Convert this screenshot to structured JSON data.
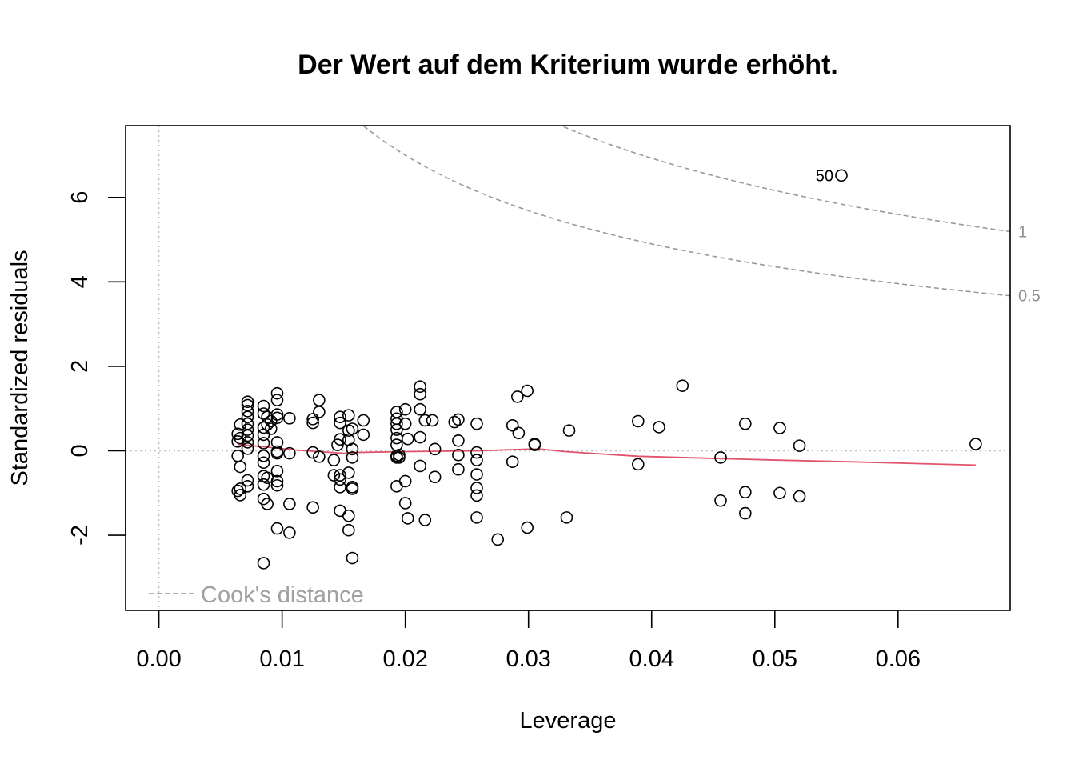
{
  "chart_data": {
    "type": "scatter",
    "title": "Der Wert auf dem Kriterium wurde erhöht.",
    "xlabel": "Leverage",
    "ylabel": "Standardized residuals",
    "xlim": [
      -0.0027,
      0.0691
    ],
    "ylim": [
      -3.78,
      7.7
    ],
    "x_ticks": [
      {
        "value": 0.0,
        "label": "0.00"
      },
      {
        "value": 0.01,
        "label": "0.01"
      },
      {
        "value": 0.02,
        "label": "0.02"
      },
      {
        "value": 0.03,
        "label": "0.03"
      },
      {
        "value": 0.04,
        "label": "0.04"
      },
      {
        "value": 0.05,
        "label": "0.05"
      },
      {
        "value": 0.06,
        "label": "0.06"
      }
    ],
    "y_ticks": [
      {
        "value": -2,
        "label": "-2"
      },
      {
        "value": 0,
        "label": "0"
      },
      {
        "value": 2,
        "label": "2"
      },
      {
        "value": 4,
        "label": "4"
      },
      {
        "value": 6,
        "label": "6"
      }
    ],
    "points": [
      [
        0.0064,
        0.4
      ],
      [
        0.0064,
        0.22
      ],
      [
        0.0064,
        -0.12
      ],
      [
        0.0064,
        -0.95
      ],
      [
        0.0066,
        0.62
      ],
      [
        0.0066,
        0.3
      ],
      [
        0.0066,
        -0.38
      ],
      [
        0.0066,
        -0.9
      ],
      [
        0.0066,
        -1.05
      ],
      [
        0.0072,
        1.16
      ],
      [
        0.0072,
        1.08
      ],
      [
        0.0072,
        0.94
      ],
      [
        0.0072,
        0.8
      ],
      [
        0.0072,
        0.64
      ],
      [
        0.0072,
        0.5
      ],
      [
        0.0072,
        0.36
      ],
      [
        0.0072,
        0.2
      ],
      [
        0.0072,
        0.05
      ],
      [
        0.0072,
        -0.7
      ],
      [
        0.0072,
        -0.84
      ],
      [
        0.0085,
        1.06
      ],
      [
        0.0085,
        0.88
      ],
      [
        0.0085,
        0.55
      ],
      [
        0.0085,
        0.38
      ],
      [
        0.0085,
        0.18
      ],
      [
        0.0085,
        -0.12
      ],
      [
        0.0085,
        -0.28
      ],
      [
        0.0085,
        -0.6
      ],
      [
        0.0085,
        -0.8
      ],
      [
        0.0085,
        -1.14
      ],
      [
        0.0085,
        -2.66
      ],
      [
        0.0088,
        0.8
      ],
      [
        0.0088,
        0.62
      ],
      [
        0.0088,
        -0.64
      ],
      [
        0.0088,
        -1.26
      ],
      [
        0.0091,
        0.7
      ],
      [
        0.0091,
        0.52
      ],
      [
        0.0096,
        1.36
      ],
      [
        0.0096,
        1.2
      ],
      [
        0.0096,
        0.86
      ],
      [
        0.0096,
        0.78
      ],
      [
        0.0096,
        0.2
      ],
      [
        0.0096,
        -0.02
      ],
      [
        0.0096,
        -0.06
      ],
      [
        0.0096,
        -0.48
      ],
      [
        0.0096,
        -0.72
      ],
      [
        0.0096,
        -0.82
      ],
      [
        0.0096,
        -1.84
      ],
      [
        0.0106,
        0.77
      ],
      [
        0.0106,
        -0.06
      ],
      [
        0.0106,
        -1.26
      ],
      [
        0.0106,
        -1.94
      ],
      [
        0.0125,
        0.75
      ],
      [
        0.0125,
        0.66
      ],
      [
        0.0125,
        -0.04
      ],
      [
        0.0125,
        -1.34
      ],
      [
        0.013,
        1.2
      ],
      [
        0.013,
        0.92
      ],
      [
        0.013,
        -0.14
      ],
      [
        0.0142,
        -0.22
      ],
      [
        0.0142,
        -0.58
      ],
      [
        0.0145,
        0.14
      ],
      [
        0.0147,
        0.8
      ],
      [
        0.0147,
        0.66
      ],
      [
        0.0147,
        0.27
      ],
      [
        0.0147,
        -0.58
      ],
      [
        0.0147,
        -0.68
      ],
      [
        0.0147,
        -0.86
      ],
      [
        0.0147,
        -1.42
      ],
      [
        0.0154,
        0.84
      ],
      [
        0.0154,
        0.48
      ],
      [
        0.0154,
        0.26
      ],
      [
        0.0154,
        -0.52
      ],
      [
        0.0154,
        -1.54
      ],
      [
        0.0154,
        -1.88
      ],
      [
        0.0157,
        0.52
      ],
      [
        0.0157,
        0.04
      ],
      [
        0.0157,
        -0.16
      ],
      [
        0.0157,
        -0.86
      ],
      [
        0.0157,
        -0.9
      ],
      [
        0.0157,
        -2.54
      ],
      [
        0.0166,
        0.72
      ],
      [
        0.0166,
        0.38
      ],
      [
        0.0193,
        0.92
      ],
      [
        0.0193,
        0.76
      ],
      [
        0.0193,
        0.64
      ],
      [
        0.0193,
        0.5
      ],
      [
        0.0193,
        0.3
      ],
      [
        0.0193,
        0.14
      ],
      [
        0.0193,
        -0.12
      ],
      [
        0.0193,
        -0.16
      ],
      [
        0.0193,
        -0.84
      ],
      [
        0.0195,
        -0.1
      ],
      [
        0.0195,
        -0.16
      ],
      [
        0.02,
        0.98
      ],
      [
        0.02,
        0.64
      ],
      [
        0.02,
        -0.72
      ],
      [
        0.02,
        -1.24
      ],
      [
        0.0202,
        0.28
      ],
      [
        0.0202,
        -1.6
      ],
      [
        0.0212,
        1.52
      ],
      [
        0.0212,
        1.34
      ],
      [
        0.0212,
        0.98
      ],
      [
        0.0212,
        0.32
      ],
      [
        0.0212,
        -0.36
      ],
      [
        0.0216,
        0.72
      ],
      [
        0.0216,
        -1.64
      ],
      [
        0.0222,
        0.72
      ],
      [
        0.0224,
        0.04
      ],
      [
        0.0224,
        -0.62
      ],
      [
        0.024,
        0.68
      ],
      [
        0.0243,
        0.74
      ],
      [
        0.0243,
        0.24
      ],
      [
        0.0243,
        -0.1
      ],
      [
        0.0243,
        -0.44
      ],
      [
        0.0258,
        0.64
      ],
      [
        0.0258,
        -0.04
      ],
      [
        0.0258,
        -0.22
      ],
      [
        0.0258,
        -0.56
      ],
      [
        0.0258,
        -0.88
      ],
      [
        0.0258,
        -1.06
      ],
      [
        0.0258,
        -1.58
      ],
      [
        0.0275,
        -2.1
      ],
      [
        0.0287,
        0.6
      ],
      [
        0.0287,
        -0.26
      ],
      [
        0.0291,
        1.28
      ],
      [
        0.0292,
        0.42
      ],
      [
        0.0299,
        1.42
      ],
      [
        0.0299,
        -1.82
      ],
      [
        0.0305,
        0.16
      ],
      [
        0.0305,
        0.14
      ],
      [
        0.0331,
        -1.58
      ],
      [
        0.0333,
        0.48
      ],
      [
        0.0389,
        0.7
      ],
      [
        0.0389,
        -0.32
      ],
      [
        0.0406,
        0.56
      ],
      [
        0.0425,
        1.54
      ],
      [
        0.0456,
        -0.16
      ],
      [
        0.0456,
        -1.18
      ],
      [
        0.0476,
        0.64
      ],
      [
        0.0476,
        -0.98
      ],
      [
        0.0476,
        -1.48
      ],
      [
        0.0504,
        0.54
      ],
      [
        0.0504,
        -1.0
      ],
      [
        0.052,
        0.12
      ],
      [
        0.052,
        -1.08
      ],
      [
        0.0554,
        6.52
      ],
      [
        0.0663,
        0.16
      ]
    ],
    "labeled_point": {
      "x": 0.0554,
      "y": 6.52,
      "label": "50"
    },
    "smoother": [
      [
        0.0064,
        0.15
      ],
      [
        0.009,
        0.08
      ],
      [
        0.011,
        0.02
      ],
      [
        0.013,
        -0.02
      ],
      [
        0.015,
        -0.06
      ],
      [
        0.016,
        -0.04
      ],
      [
        0.02,
        -0.02
      ],
      [
        0.023,
        -0.01
      ],
      [
        0.026,
        0.0
      ],
      [
        0.028,
        0.02
      ],
      [
        0.03,
        0.04
      ],
      [
        0.031,
        0.04
      ],
      [
        0.033,
        -0.02
      ],
      [
        0.0389,
        -0.13
      ],
      [
        0.045,
        -0.18
      ],
      [
        0.05,
        -0.22
      ],
      [
        0.056,
        -0.26
      ],
      [
        0.0663,
        -0.34
      ]
    ],
    "cooks_contours": [
      {
        "level": 1,
        "label": "1"
      },
      {
        "level": 0.5,
        "label": "0.5"
      }
    ],
    "legend": {
      "label": "Cook's distance",
      "position": "bottom-left"
    },
    "reference_lines": {
      "h": 0,
      "v": 0
    },
    "colors": {
      "points": "#000000",
      "smoother": "#DF536B",
      "contours": "#999999",
      "reference": "#BEBEBE",
      "legend_text": "#A0A0A0"
    }
  }
}
